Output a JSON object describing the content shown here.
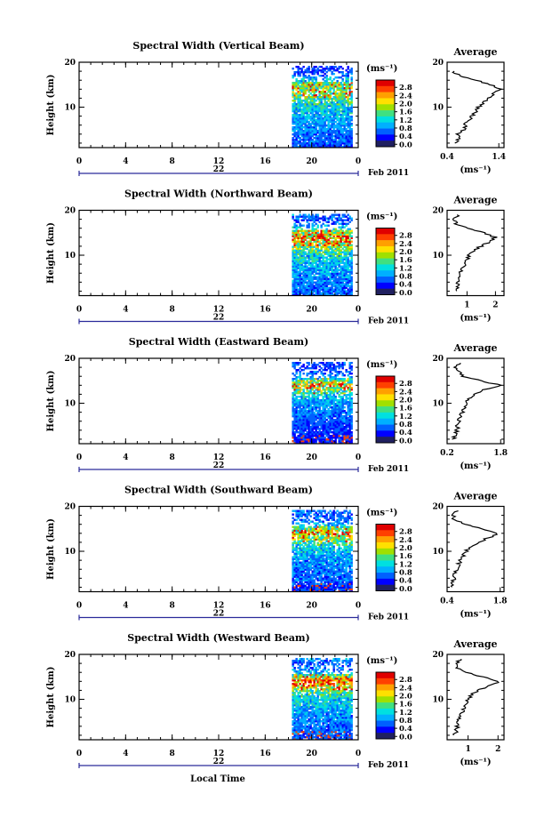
{
  "figure": {
    "x_axis_label": "Local Time",
    "date_label": "Feb 2011",
    "colorbar_unit": "(ms⁻¹)",
    "colorbar_ticks": [
      "0.0",
      "0.4",
      "0.8",
      "1.2",
      "1.6",
      "2.0",
      "2.4",
      "2.8"
    ],
    "colorbar_colors": [
      "#202060",
      "#0000ff",
      "#0060ff",
      "#00b0ff",
      "#00e0e0",
      "#40e080",
      "#a0e000",
      "#ffe000",
      "#ffa000",
      "#ff4000",
      "#e00000"
    ],
    "average_title": "Average",
    "average_xlabel": "(ms⁻¹)",
    "y_label": "Height (km)"
  },
  "chart_data": [
    {
      "type": "heatmap",
      "title": "Spectral Width (Vertical Beam)",
      "xlabel": "Local Time",
      "ylabel": "Height (km)",
      "xlim": [
        0,
        24
      ],
      "ylim": [
        1,
        20
      ],
      "x_ticks": [
        "0",
        "4",
        "8",
        "12",
        "16",
        "20",
        "0"
      ],
      "y_ticks": [
        "10",
        "20"
      ],
      "day_label": "22",
      "data_start_hour": 18.3,
      "data_end_hour": 23.5,
      "colorbar_range": [
        0,
        3.0
      ],
      "average": {
        "title": "Average",
        "xlabel": "(ms⁻¹)",
        "x_ticks": [
          "0.4",
          "1.4"
        ],
        "xlim": [
          0.4,
          1.5
        ],
        "heights": [
          2,
          3,
          4,
          5,
          6,
          7,
          8,
          9,
          10,
          11,
          12,
          13,
          14,
          15,
          16,
          17,
          18
        ],
        "values": [
          0.55,
          0.62,
          0.6,
          0.72,
          0.75,
          0.8,
          0.88,
          0.95,
          1.0,
          1.1,
          1.22,
          1.3,
          1.42,
          1.25,
          0.95,
          0.65,
          0.5
        ]
      }
    },
    {
      "type": "heatmap",
      "title": "Spectral Width (Northward Beam)",
      "xlabel": "Local Time",
      "ylabel": "Height (km)",
      "xlim": [
        0,
        24
      ],
      "ylim": [
        1,
        20
      ],
      "x_ticks": [
        "0",
        "4",
        "8",
        "12",
        "16",
        "20",
        "0"
      ],
      "y_ticks": [
        "10",
        "20"
      ],
      "day_label": "22",
      "data_start_hour": 18.3,
      "data_end_hour": 23.5,
      "colorbar_range": [
        0,
        3.0
      ],
      "average": {
        "title": "Average",
        "xlabel": "(ms⁻¹)",
        "x_ticks": [
          "1",
          "2"
        ],
        "xlim": [
          0.3,
          2.3
        ],
        "heights": [
          2,
          3,
          4,
          5,
          6,
          7,
          8,
          9,
          10,
          11,
          12,
          13,
          14,
          15,
          16,
          17,
          18,
          19
        ],
        "values": [
          0.6,
          0.65,
          0.7,
          0.72,
          0.75,
          0.8,
          0.9,
          1.0,
          1.05,
          1.2,
          1.5,
          1.8,
          2.0,
          1.6,
          1.0,
          0.6,
          0.55,
          0.7
        ]
      }
    },
    {
      "type": "heatmap",
      "title": "Spectral Width (Eastward Beam)",
      "xlabel": "Local Time",
      "ylabel": "Height (km)",
      "xlim": [
        0,
        24
      ],
      "ylim": [
        1,
        20
      ],
      "x_ticks": [
        "0",
        "4",
        "8",
        "12",
        "16",
        "20",
        "0"
      ],
      "y_ticks": [
        "10",
        "20"
      ],
      "day_label": "22",
      "data_start_hour": 18.3,
      "data_end_hour": 23.5,
      "colorbar_range": [
        0,
        3.0
      ],
      "average": {
        "title": "Average",
        "xlabel": "(ms⁻¹)",
        "x_ticks": [
          "0.2",
          "1.8"
        ],
        "xlim": [
          0.2,
          1.9
        ],
        "heights": [
          2,
          3,
          4,
          5,
          6,
          7,
          8,
          9,
          10,
          11,
          12,
          13,
          14,
          15,
          16,
          17,
          18,
          19
        ],
        "values": [
          0.4,
          0.45,
          0.5,
          0.52,
          0.55,
          0.6,
          0.65,
          0.7,
          0.78,
          0.85,
          1.0,
          1.3,
          1.8,
          1.2,
          0.7,
          0.55,
          0.45,
          0.6
        ]
      }
    },
    {
      "type": "heatmap",
      "title": "Spectral Width (Southward Beam)",
      "xlabel": "Local Time",
      "ylabel": "Height (km)",
      "xlim": [
        0,
        24
      ],
      "ylim": [
        1,
        20
      ],
      "x_ticks": [
        "0",
        "4",
        "8",
        "12",
        "16",
        "20",
        "0"
      ],
      "y_ticks": [
        "10",
        "20"
      ],
      "day_label": "22",
      "data_start_hour": 18.3,
      "data_end_hour": 23.5,
      "colorbar_range": [
        0,
        3.0
      ],
      "average": {
        "title": "Average",
        "xlabel": "(ms⁻¹)",
        "x_ticks": [
          "0.4",
          "1.8"
        ],
        "xlim": [
          0.4,
          1.9
        ],
        "heights": [
          2,
          3,
          4,
          5,
          6,
          7,
          8,
          9,
          10,
          11,
          12,
          13,
          14,
          15,
          16,
          17,
          18,
          19
        ],
        "values": [
          0.5,
          0.55,
          0.6,
          0.62,
          0.65,
          0.7,
          0.75,
          0.82,
          0.9,
          1.0,
          1.2,
          1.5,
          1.75,
          1.3,
          0.85,
          0.6,
          0.55,
          0.65
        ]
      }
    },
    {
      "type": "heatmap",
      "title": "Spectral Width (Westward Beam)",
      "xlabel": "Local Time",
      "ylabel": "Height (km)",
      "xlim": [
        0,
        24
      ],
      "ylim": [
        1,
        20
      ],
      "x_ticks": [
        "0",
        "4",
        "8",
        "12",
        "16",
        "20",
        "0"
      ],
      "y_ticks": [
        "10",
        "20"
      ],
      "day_label": "22",
      "data_start_hour": 18.3,
      "data_end_hour": 23.5,
      "colorbar_range": [
        0,
        3.0
      ],
      "average": {
        "title": "Average",
        "xlabel": "(ms⁻¹)",
        "x_ticks": [
          "1",
          "2"
        ],
        "xlim": [
          0.3,
          2.2
        ],
        "heights": [
          2,
          3,
          4,
          5,
          6,
          7,
          8,
          9,
          10,
          11,
          12,
          13,
          14,
          15,
          16,
          17,
          18,
          19
        ],
        "values": [
          0.55,
          0.6,
          0.65,
          0.7,
          0.72,
          0.78,
          0.85,
          0.95,
          1.0,
          1.1,
          1.35,
          1.7,
          2.05,
          1.5,
          0.9,
          0.65,
          0.6,
          0.75
        ]
      }
    }
  ]
}
